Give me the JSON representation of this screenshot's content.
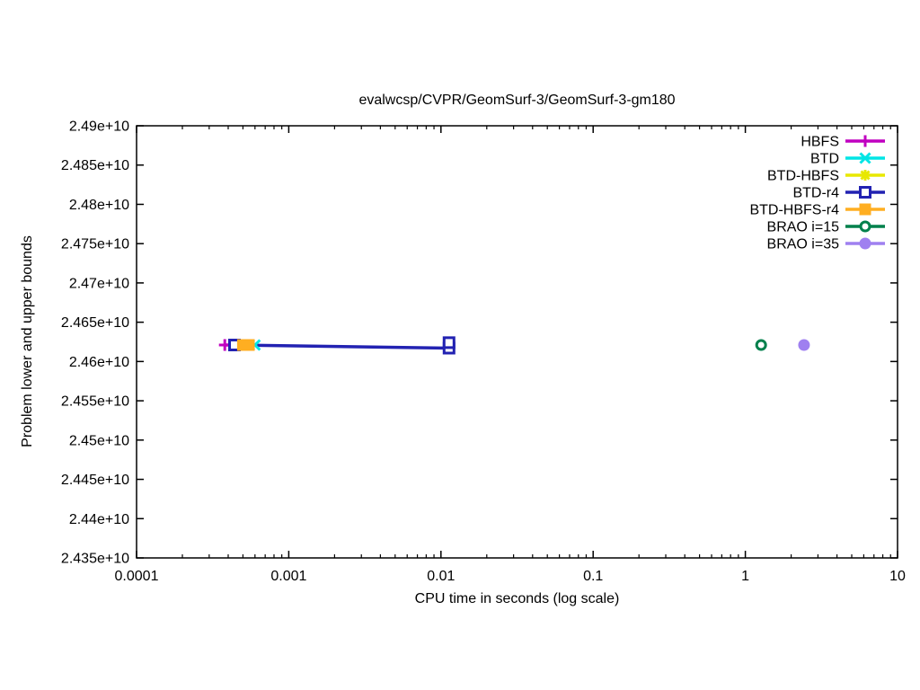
{
  "chart_data": {
    "type": "line",
    "title": "evalwcsp/CVPR/GeomSurf-3/GeomSurf-3-gm180",
    "xlabel": "CPU time in seconds (log scale)",
    "ylabel": "Problem lower and upper bounds",
    "x_scale": "log",
    "grid": false,
    "legend_position": "top-right-inside",
    "xlim": [
      0.0001,
      10
    ],
    "ylim": [
      24350000000.0,
      24900000000.0
    ],
    "x_ticks": [
      {
        "v": 0.0001,
        "label": "0.0001"
      },
      {
        "v": 0.001,
        "label": "0.001"
      },
      {
        "v": 0.01,
        "label": "0.01"
      },
      {
        "v": 0.1,
        "label": "0.1"
      },
      {
        "v": 1,
        "label": "1"
      },
      {
        "v": 10,
        "label": "10"
      }
    ],
    "y_ticks": [
      {
        "v": 24900000000.0,
        "label": "2.49e+10"
      },
      {
        "v": 24850000000.0,
        "label": "2.485e+10"
      },
      {
        "v": 24800000000.0,
        "label": "2.48e+10"
      },
      {
        "v": 24750000000.0,
        "label": "2.475e+10"
      },
      {
        "v": 24700000000.0,
        "label": "2.47e+10"
      },
      {
        "v": 24650000000.0,
        "label": "2.465e+10"
      },
      {
        "v": 24600000000.0,
        "label": "2.46e+10"
      },
      {
        "v": 24550000000.0,
        "label": "2.455e+10"
      },
      {
        "v": 24500000000.0,
        "label": "2.45e+10"
      },
      {
        "v": 24450000000.0,
        "label": "2.445e+10"
      },
      {
        "v": 24400000000.0,
        "label": "2.44e+10"
      },
      {
        "v": 24350000000.0,
        "label": "2.435e+10"
      }
    ],
    "series": [
      {
        "name": "HBFS",
        "color": "#C000C0",
        "marker": "plus",
        "points": [
          [
            0.00038,
            24621000000.0
          ],
          [
            0.00042,
            24621000000.0
          ]
        ]
      },
      {
        "name": "BTD",
        "color": "#00E5E5",
        "marker": "cross",
        "points": [
          [
            0.00055,
            24621000000.0
          ],
          [
            0.0006,
            24621000000.0
          ]
        ]
      },
      {
        "name": "BTD-HBFS",
        "color": "#E8E800",
        "marker": "star",
        "points": [
          [
            0.00044,
            24621000000.0
          ],
          [
            0.000452,
            24621000000.0
          ]
        ]
      },
      {
        "name": "BTD-r4",
        "color": "#2222B2",
        "marker": "square-open",
        "points": [
          [
            0.00044,
            24621000000.0
          ],
          [
            0.0113,
            24617000000.0
          ],
          [
            0.0113,
            24624000000.0
          ]
        ]
      },
      {
        "name": "BTD-HBFS-r4",
        "color": "#FFAE21",
        "marker": "square-fill",
        "points": [
          [
            0.0005,
            24621000000.0
          ],
          [
            0.000547,
            24621000000.0
          ]
        ]
      },
      {
        "name": "BRAO i=15",
        "color": "#00804C",
        "marker": "circle-open",
        "points": [
          [
            1.27,
            24621000000.0
          ]
        ]
      },
      {
        "name": "BRAO i=35",
        "color": "#9F80F0",
        "marker": "circle-fill",
        "points": [
          [
            2.43,
            24621000000.0
          ]
        ]
      }
    ]
  }
}
